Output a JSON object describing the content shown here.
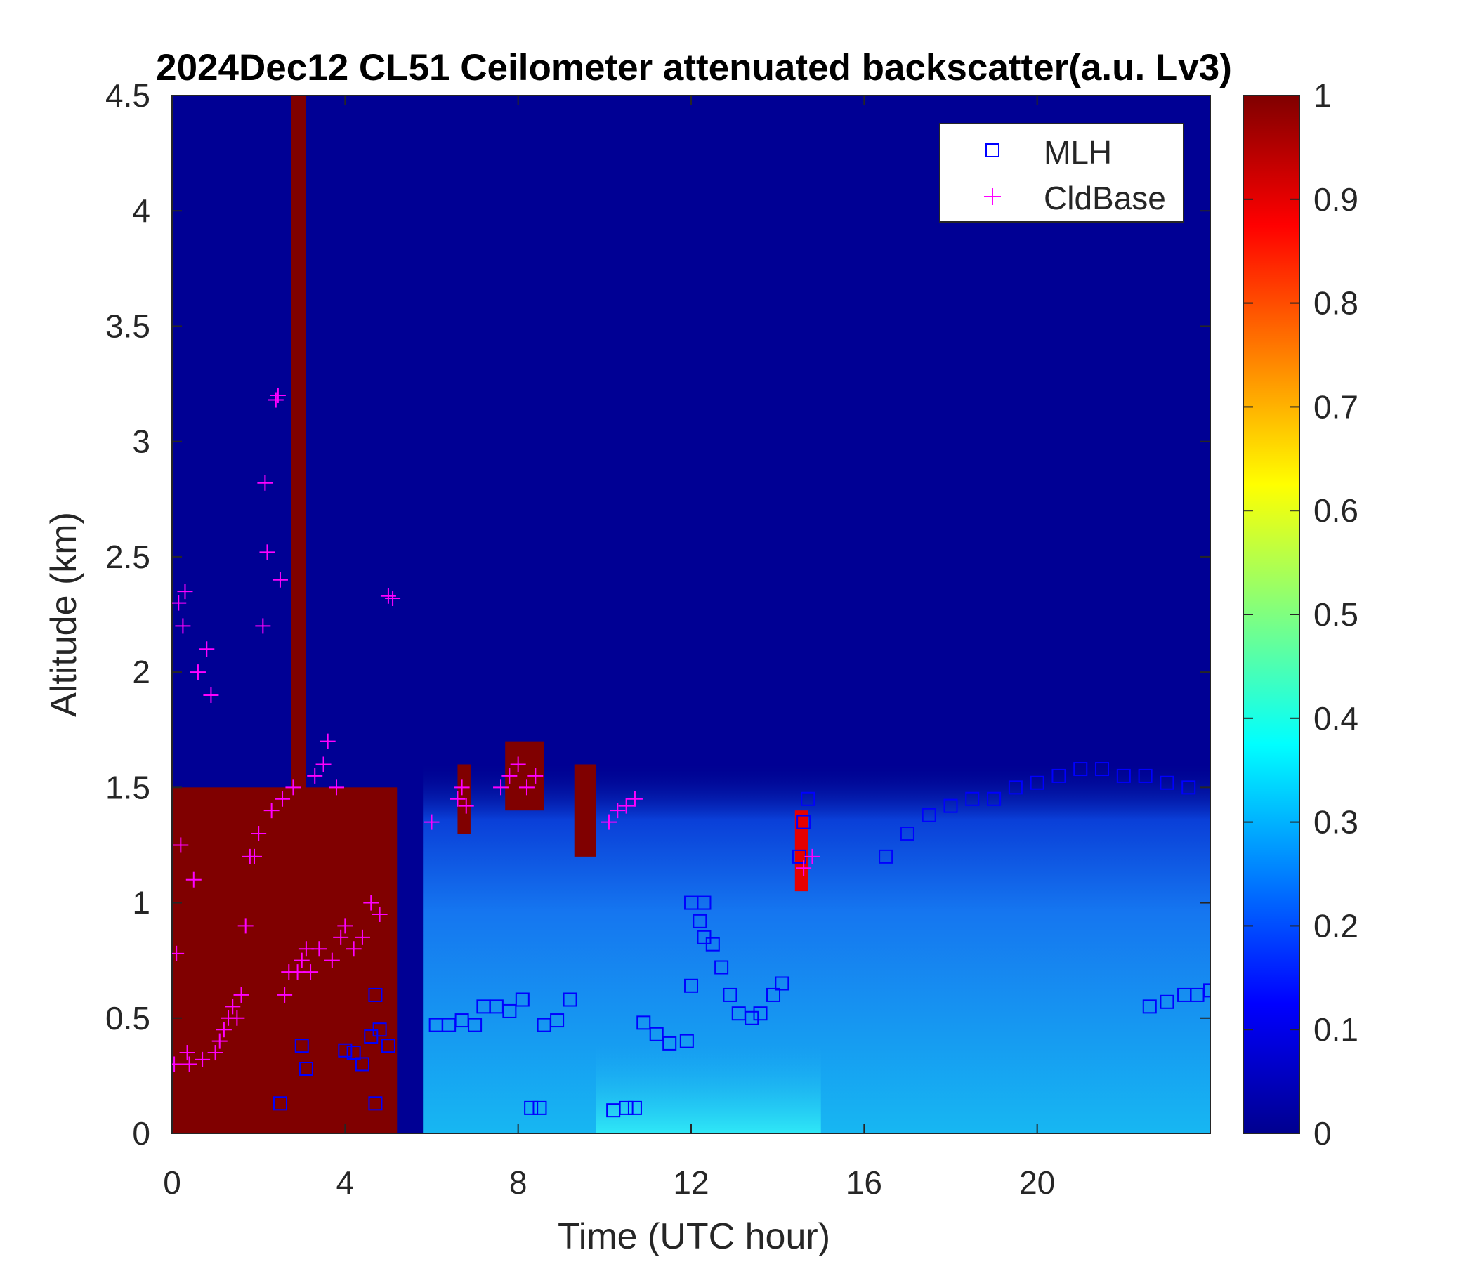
{
  "chart_data": {
    "type": "heatmap",
    "title": "2024Dec12 CL51 Ceilometer attenuated backscatter(a.u. Lv3)",
    "xlabel": "Time (UTC hour)",
    "ylabel": "Altitude (km)",
    "xlim": [
      0,
      24
    ],
    "ylim": [
      0,
      4.5
    ],
    "xticks": [
      0,
      4,
      8,
      12,
      16,
      20
    ],
    "yticks": [
      0,
      0.5,
      1,
      1.5,
      2,
      2.5,
      3,
      3.5,
      4,
      4.5
    ],
    "xtick_labels": [
      "0",
      "4",
      "8",
      "12",
      "16",
      "20"
    ],
    "ytick_labels": [
      "0",
      "0.5",
      "1",
      "1.5",
      "2",
      "2.5",
      "3",
      "3.5",
      "4",
      "4.5"
    ],
    "colorbar": {
      "colormap": "jet",
      "range": [
        0,
        1
      ],
      "ticks": [
        0,
        0.1,
        0.2,
        0.3,
        0.4,
        0.5,
        0.6,
        0.7,
        0.8,
        0.9,
        1
      ],
      "tick_labels": [
        "0",
        "0.1",
        "0.2",
        "0.3",
        "0.4",
        "0.5",
        "0.6",
        "0.7",
        "0.8",
        "0.9",
        "1"
      ]
    },
    "legend": {
      "placement": "top-right",
      "entries": [
        {
          "label": "MLH",
          "marker": "square",
          "color": "#0000ff"
        },
        {
          "label": "CldBase",
          "marker": "plus",
          "color": "#ff00ff"
        }
      ]
    },
    "backscatter_features": [
      {
        "kind": "background_upper",
        "t0": 0,
        "t1": 24,
        "h0": 1.6,
        "h1": 4.5,
        "value": 0.02
      },
      {
        "kind": "boundary_layer",
        "t0": 5.8,
        "t1": 24,
        "h0": 0,
        "h1": 1.6,
        "value": 0.22
      },
      {
        "kind": "strong_cloud_layer",
        "t0": 0,
        "t1": 5.2,
        "h0": 0,
        "h1": 1.5,
        "value": 1.0
      },
      {
        "kind": "cloud_column",
        "t0": 2.75,
        "t1": 3.1,
        "h0": 0,
        "h1": 4.5,
        "value": 1.0
      },
      {
        "kind": "cloud_patch",
        "t0": 9.3,
        "t1": 9.8,
        "h0": 1.2,
        "h1": 1.6,
        "value": 1.0
      },
      {
        "kind": "cloud_patch",
        "t0": 7.7,
        "t1": 8.6,
        "h0": 1.4,
        "h1": 1.7,
        "value": 1.0
      },
      {
        "kind": "cloud_patch",
        "t0": 6.6,
        "t1": 6.9,
        "h0": 1.3,
        "h1": 1.6,
        "value": 1.0
      },
      {
        "kind": "cloud_patch",
        "t0": 14.4,
        "t1": 14.7,
        "h0": 1.05,
        "h1": 1.4,
        "value": 0.9
      },
      {
        "kind": "aerosol_plume",
        "t0": 9.8,
        "t1": 15.0,
        "h0": 0,
        "h1": 0.4,
        "value": 0.38
      }
    ],
    "series": [
      {
        "name": "MLH",
        "marker": "square",
        "color": "#0000ff",
        "points": [
          [
            2.5,
            0.13
          ],
          [
            3.0,
            0.38
          ],
          [
            3.1,
            0.28
          ],
          [
            4.0,
            0.36
          ],
          [
            4.2,
            0.35
          ],
          [
            4.4,
            0.3
          ],
          [
            4.6,
            0.42
          ],
          [
            4.7,
            0.6
          ],
          [
            4.8,
            0.45
          ],
          [
            5.0,
            0.38
          ],
          [
            4.7,
            0.13
          ],
          [
            6.1,
            0.47
          ],
          [
            6.4,
            0.47
          ],
          [
            6.7,
            0.49
          ],
          [
            7.0,
            0.47
          ],
          [
            7.2,
            0.55
          ],
          [
            7.5,
            0.55
          ],
          [
            7.8,
            0.53
          ],
          [
            8.1,
            0.58
          ],
          [
            8.3,
            0.11
          ],
          [
            8.5,
            0.11
          ],
          [
            8.6,
            0.47
          ],
          [
            8.9,
            0.49
          ],
          [
            9.2,
            0.58
          ],
          [
            10.2,
            0.1
          ],
          [
            10.5,
            0.11
          ],
          [
            10.7,
            0.11
          ],
          [
            10.9,
            0.48
          ],
          [
            11.2,
            0.43
          ],
          [
            11.5,
            0.39
          ],
          [
            11.9,
            0.4
          ],
          [
            12.0,
            0.64
          ],
          [
            12.0,
            1.0
          ],
          [
            12.3,
            1.0
          ],
          [
            12.2,
            0.92
          ],
          [
            12.3,
            0.85
          ],
          [
            12.5,
            0.82
          ],
          [
            12.7,
            0.72
          ],
          [
            12.9,
            0.6
          ],
          [
            13.1,
            0.52
          ],
          [
            13.4,
            0.5
          ],
          [
            13.6,
            0.52
          ],
          [
            13.9,
            0.6
          ],
          [
            14.1,
            0.65
          ],
          [
            14.5,
            1.2
          ],
          [
            14.6,
            1.35
          ],
          [
            14.7,
            1.45
          ],
          [
            16.5,
            1.2
          ],
          [
            17.0,
            1.3
          ],
          [
            17.5,
            1.38
          ],
          [
            18.0,
            1.42
          ],
          [
            18.5,
            1.45
          ],
          [
            19.0,
            1.45
          ],
          [
            19.5,
            1.5
          ],
          [
            20.0,
            1.52
          ],
          [
            20.5,
            1.55
          ],
          [
            21.0,
            1.58
          ],
          [
            21.5,
            1.58
          ],
          [
            22.0,
            1.55
          ],
          [
            22.5,
            1.55
          ],
          [
            23.0,
            1.52
          ],
          [
            23.5,
            1.5
          ],
          [
            22.6,
            0.55
          ],
          [
            23.0,
            0.57
          ],
          [
            23.4,
            0.6
          ],
          [
            23.7,
            0.6
          ],
          [
            24.0,
            0.62
          ]
        ]
      },
      {
        "name": "CldBase",
        "marker": "plus",
        "color": "#ff00ff",
        "points": [
          [
            0.05,
            0.3
          ],
          [
            0.1,
            0.78
          ],
          [
            0.15,
            2.3
          ],
          [
            0.2,
            1.25
          ],
          [
            0.25,
            2.2
          ],
          [
            0.3,
            2.35
          ],
          [
            0.35,
            0.35
          ],
          [
            0.4,
            0.3
          ],
          [
            0.5,
            1.1
          ],
          [
            0.6,
            2.0
          ],
          [
            0.7,
            0.32
          ],
          [
            0.8,
            2.1
          ],
          [
            0.9,
            1.9
          ],
          [
            1.0,
            0.35
          ],
          [
            1.1,
            0.4
          ],
          [
            1.2,
            0.45
          ],
          [
            1.3,
            0.5
          ],
          [
            1.4,
            0.55
          ],
          [
            1.5,
            0.5
          ],
          [
            1.6,
            0.6
          ],
          [
            1.7,
            0.9
          ],
          [
            1.8,
            1.2
          ],
          [
            1.9,
            1.2
          ],
          [
            2.0,
            1.3
          ],
          [
            2.1,
            2.2
          ],
          [
            2.15,
            2.82
          ],
          [
            2.2,
            2.52
          ],
          [
            2.3,
            1.4
          ],
          [
            2.4,
            3.18
          ],
          [
            2.45,
            3.2
          ],
          [
            2.5,
            2.4
          ],
          [
            2.55,
            1.45
          ],
          [
            2.6,
            0.6
          ],
          [
            2.7,
            0.7
          ],
          [
            2.8,
            1.5
          ],
          [
            2.9,
            0.7
          ],
          [
            3.0,
            0.75
          ],
          [
            3.1,
            0.8
          ],
          [
            3.2,
            0.7
          ],
          [
            3.3,
            1.55
          ],
          [
            3.4,
            0.8
          ],
          [
            3.5,
            1.6
          ],
          [
            3.6,
            1.7
          ],
          [
            3.7,
            0.75
          ],
          [
            3.8,
            1.5
          ],
          [
            3.9,
            0.85
          ],
          [
            4.0,
            0.9
          ],
          [
            4.2,
            0.8
          ],
          [
            4.4,
            0.85
          ],
          [
            4.6,
            1.0
          ],
          [
            4.8,
            0.95
          ],
          [
            5.0,
            2.33
          ],
          [
            5.1,
            2.32
          ],
          [
            6.0,
            1.35
          ],
          [
            6.6,
            1.45
          ],
          [
            6.7,
            1.5
          ],
          [
            6.8,
            1.42
          ],
          [
            7.6,
            1.5
          ],
          [
            7.8,
            1.55
          ],
          [
            8.0,
            1.6
          ],
          [
            8.2,
            1.5
          ],
          [
            8.4,
            1.55
          ],
          [
            10.1,
            1.35
          ],
          [
            10.3,
            1.4
          ],
          [
            10.5,
            1.42
          ],
          [
            10.7,
            1.45
          ],
          [
            14.6,
            1.15
          ],
          [
            14.8,
            1.2
          ]
        ]
      }
    ]
  }
}
